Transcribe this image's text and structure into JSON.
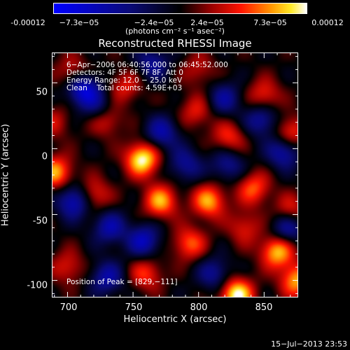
{
  "colorbar": {
    "ticks": [
      "-0.00012",
      "−7.3e−05",
      "−2.4e−05",
      "2.4e−05",
      "7.3e−05",
      "0.00012"
    ],
    "unit": "(photons cm⁻² s⁻¹ asec⁻²)"
  },
  "chart_data": {
    "type": "heatmap",
    "title": "Reconstructed RHESSI Image",
    "xlabel": "Heliocentric X (arcsec)",
    "ylabel": "Heliocentric Y (arcsec)",
    "xlim": [
      688,
      876
    ],
    "ylim": [
      -113,
      73
    ],
    "xticks": [
      700,
      750,
      800,
      850
    ],
    "yticks": [
      -100,
      -50,
      0,
      50
    ],
    "colorscale_range": [
      -0.00012,
      0.00012
    ],
    "annotations": {
      "time": "6−Apr−2006 06:40:56.000 to 06:45:52.000",
      "detectors": "Detectors: 4F 5F 6F 7F 8F, Att 0",
      "energy": "Energy Range: 12.0 − 25.0 keV",
      "clean": "Clean    Total counts: 4.59E+03",
      "peak": "Position of Peak = [829,−111]"
    },
    "blobs": [
      {
        "x": 757,
        "y": -8,
        "value": 0.00012
      },
      {
        "x": 729,
        "y": 23,
        "value": 7e-05
      },
      {
        "x": 704,
        "y": 58,
        "value": 5e-05
      },
      {
        "x": 744,
        "y": 47,
        "value": 5e-05
      },
      {
        "x": 798,
        "y": 28,
        "value": 5e-05
      },
      {
        "x": 823,
        "y": 8,
        "value": 6e-05
      },
      {
        "x": 850,
        "y": 40,
        "value": 6e-05
      },
      {
        "x": 870,
        "y": 12,
        "value": 7e-05
      },
      {
        "x": 691,
        "y": -18,
        "value": 9e-05
      },
      {
        "x": 720,
        "y": -35,
        "value": 6e-05
      },
      {
        "x": 771,
        "y": -40,
        "value": 9e-05
      },
      {
        "x": 808,
        "y": -40,
        "value": 9e-05
      },
      {
        "x": 842,
        "y": -30,
        "value": 7e-05
      },
      {
        "x": 870,
        "y": -48,
        "value": 6e-05
      },
      {
        "x": 760,
        "y": -95,
        "value": 6e-05
      },
      {
        "x": 793,
        "y": -72,
        "value": 7e-05
      },
      {
        "x": 829,
        "y": -111,
        "value": 0.00012
      },
      {
        "x": 860,
        "y": -78,
        "value": 0.0001
      },
      {
        "x": 875,
        "y": -100,
        "value": 9e-05
      },
      {
        "x": 700,
        "y": -90,
        "value": 5e-05
      },
      {
        "x": 835,
        "y": -60,
        "value": 5e-05
      },
      {
        "x": 712,
        "y": 45,
        "value": -0.0001
      },
      {
        "x": 725,
        "y": 30,
        "value": -6e-05
      },
      {
        "x": 772,
        "y": 12,
        "value": -7e-05
      },
      {
        "x": 820,
        "y": 38,
        "value": -6e-05
      },
      {
        "x": 848,
        "y": 22,
        "value": -7e-05
      },
      {
        "x": 865,
        "y": -2,
        "value": -8e-05
      },
      {
        "x": 705,
        "y": -40,
        "value": -9e-05
      },
      {
        "x": 732,
        "y": -60,
        "value": -7e-05
      },
      {
        "x": 790,
        "y": -12,
        "value": -6e-05
      },
      {
        "x": 822,
        "y": -12,
        "value": -6e-05
      },
      {
        "x": 758,
        "y": -70,
        "value": -8e-05
      },
      {
        "x": 868,
        "y": -60,
        "value": -8e-05
      },
      {
        "x": 812,
        "y": -95,
        "value": -6e-05
      },
      {
        "x": 730,
        "y": -98,
        "value": -7e-05
      },
      {
        "x": 765,
        "y": 65,
        "value": -6e-05
      },
      {
        "x": 800,
        "y": 60,
        "value": 4e-05
      },
      {
        "x": 690,
        "y": 20,
        "value": 4e-05
      }
    ]
  },
  "footer": "15−Jul−2013 23:53"
}
